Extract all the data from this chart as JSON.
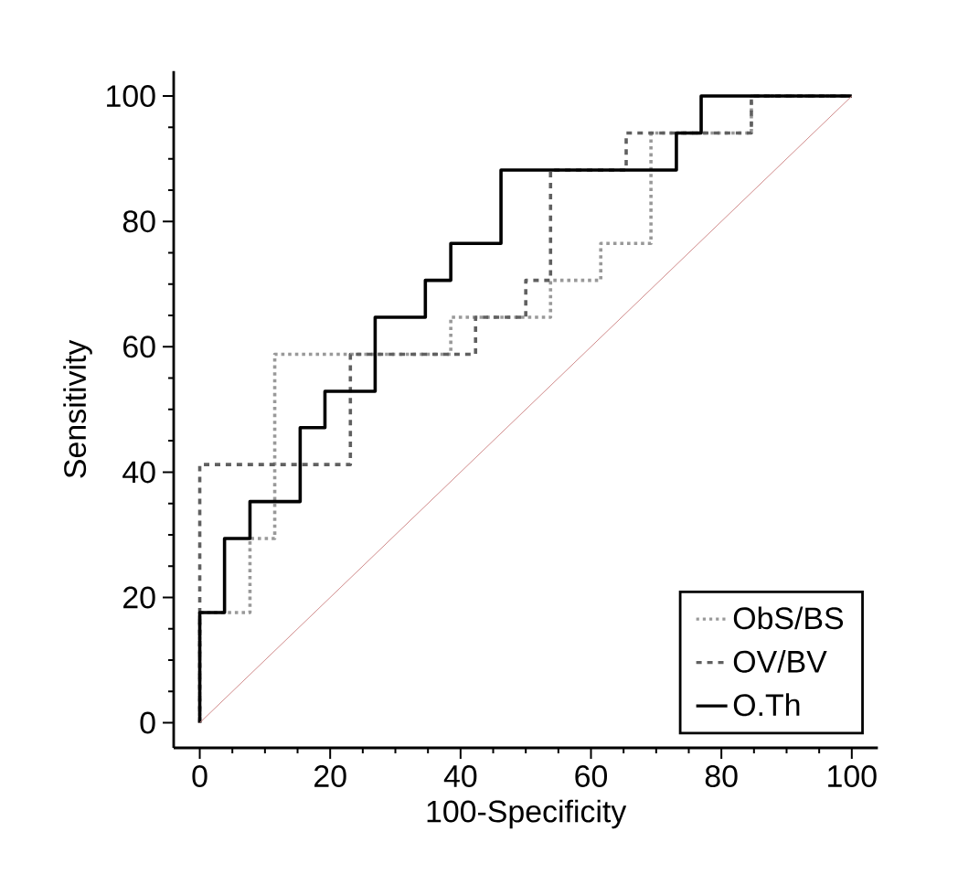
{
  "chart_data": {
    "type": "line",
    "xlabel": "100-Specificity",
    "ylabel": "Sensitivity",
    "xlim": [
      -4,
      104
    ],
    "ylim": [
      -4,
      104
    ],
    "xticks": [
      0,
      20,
      40,
      60,
      80,
      100
    ],
    "yticks": [
      0,
      20,
      40,
      60,
      80,
      100
    ],
    "grid": false,
    "legend": "bottom right",
    "marker": "none",
    "series": [
      {
        "name": "ObS/BS",
        "color": "#999999",
        "line_style": "dotted",
        "x": [
          0,
          0,
          7.7,
          7.7,
          11.5,
          11.5,
          38.5,
          38.5,
          53.8,
          53.8,
          61.5,
          61.5,
          69.2,
          69.2,
          84.6,
          84.6,
          100
        ],
        "values": [
          0,
          17.6,
          17.6,
          29.4,
          29.4,
          58.8,
          58.8,
          64.7,
          64.7,
          70.6,
          70.6,
          76.5,
          76.5,
          94.1,
          94.1,
          100,
          100
        ]
      },
      {
        "name": "OV/BV",
        "color": "#606060",
        "line_style": "dashed",
        "x": [
          0,
          0,
          23.1,
          23.1,
          42.3,
          42.3,
          50,
          50,
          53.8,
          53.8,
          65.4,
          65.4,
          84.6,
          84.6,
          100
        ],
        "values": [
          0,
          41.2,
          41.2,
          58.8,
          58.8,
          64.7,
          64.7,
          70.6,
          70.6,
          88.2,
          88.2,
          94.1,
          94.1,
          100,
          100
        ]
      },
      {
        "name": "O.Th",
        "color": "#000000",
        "line_style": "solid",
        "x": [
          0,
          0,
          3.8,
          3.8,
          7.7,
          7.7,
          15.4,
          15.4,
          19.2,
          19.2,
          26.9,
          26.9,
          34.6,
          34.6,
          38.5,
          38.5,
          46.2,
          46.2,
          73.1,
          73.1,
          76.9,
          76.9,
          100
        ],
        "values": [
          0,
          17.6,
          17.6,
          29.4,
          29.4,
          35.3,
          35.3,
          47.1,
          47.1,
          52.9,
          52.9,
          64.7,
          64.7,
          70.6,
          70.6,
          76.5,
          76.5,
          88.2,
          88.2,
          94.1,
          94.1,
          100,
          100
        ]
      },
      {
        "color": "#d08a8a",
        "line_style": "solid",
        "x": [
          0,
          100
        ],
        "values": [
          0,
          100
        ]
      }
    ]
  }
}
